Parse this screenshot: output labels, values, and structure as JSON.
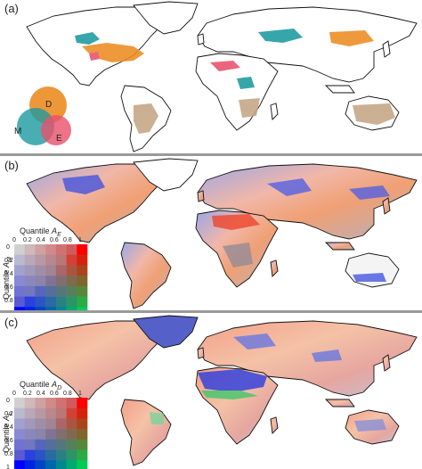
{
  "panels": [
    {
      "label": "(a)",
      "venn": [
        "D",
        "M",
        "E"
      ],
      "colors": {
        "D": "#ec8c22",
        "M": "#1c9aa0",
        "E": "#e8506c",
        "overlap": "#c4a584"
      }
    },
    {
      "label": "(b)",
      "legend": {
        "x_title": "Quantile",
        "x_symbol": "A",
        "x_sub": "E",
        "y_title": "Quantile",
        "y_symbol": "A",
        "y_sub": "M",
        "ticks": [
          "0",
          "0.2",
          "0.4",
          "0.6",
          "0.8",
          "1"
        ],
        "corner_colors": {
          "low_low": "#ffffff",
          "high_x": "#ff0000",
          "high_y": "#0000ff",
          "high_both": "#00cc55"
        }
      }
    },
    {
      "label": "(c)",
      "legend": {
        "x_title": "Quantile",
        "x_symbol": "A",
        "x_sub": "D",
        "y_title": "Quantile",
        "y_symbol": "A",
        "y_sub": "E",
        "ticks": [
          "0",
          "0.2",
          "0.4",
          "0.6",
          "0.8",
          "1"
        ],
        "corner_colors": {
          "low_low": "#ffffff",
          "high_x": "#ff0000",
          "high_y": "#0000ff",
          "high_both": "#00cc55"
        }
      }
    }
  ]
}
